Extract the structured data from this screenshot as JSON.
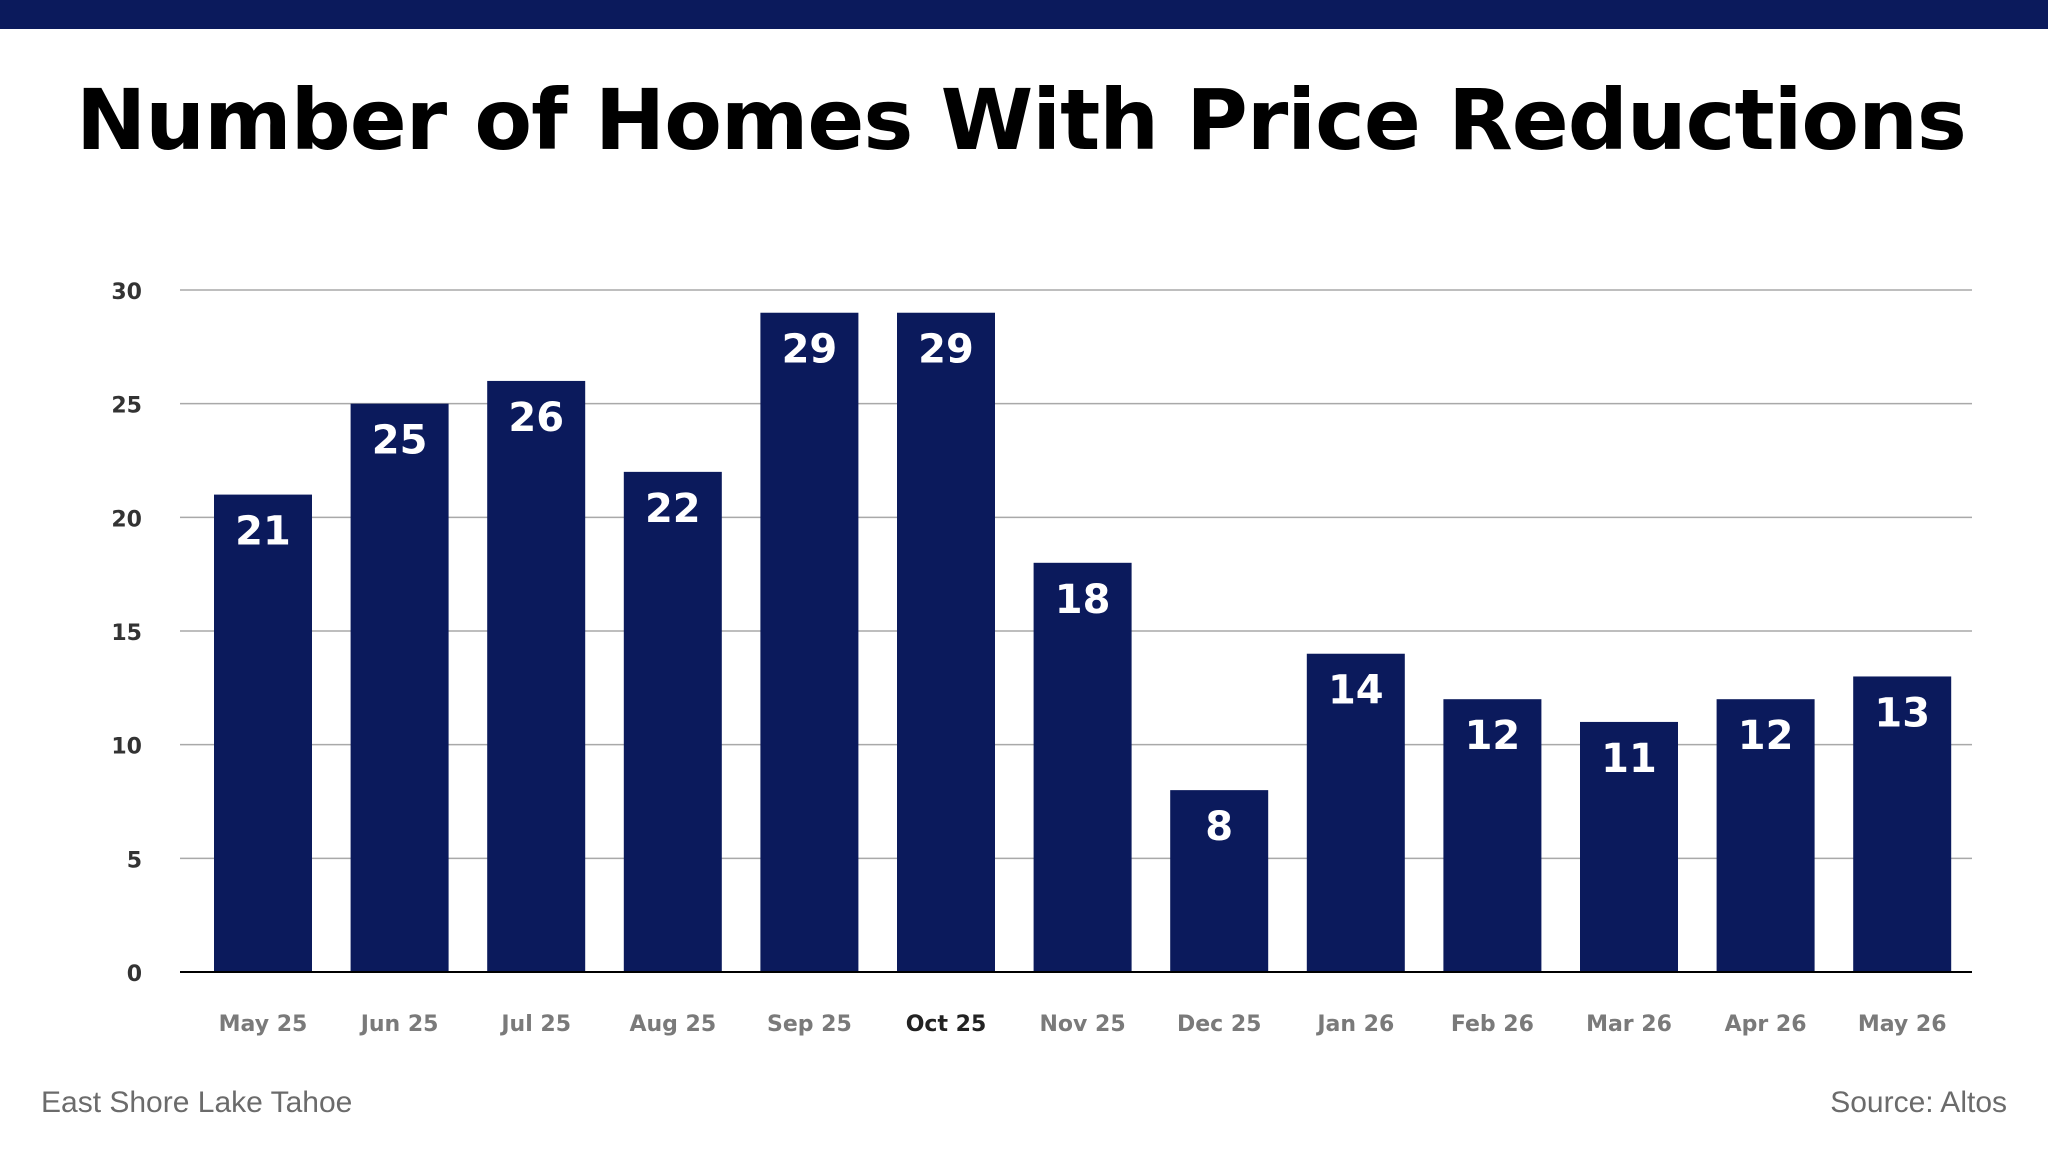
{
  "header": {
    "title": "Number of Homes With Price Reductions"
  },
  "footer": {
    "region": "East Shore Lake Tahoe",
    "source": "Source: Altos"
  },
  "colors": {
    "bar": "#0b1a5c",
    "top_bar": "#0b1a5c",
    "grid": "#a9a9a9",
    "axis": "#000000",
    "bar_label": "#ffffff",
    "tick_label": "#7a7a7a",
    "highlight_tick_label": "#222222"
  },
  "chart_data": {
    "type": "bar",
    "title": "Number of Homes With Price Reductions",
    "xlabel": "",
    "ylabel": "",
    "categories": [
      "May 25",
      "Jun 25",
      "Jul 25",
      "Aug 25",
      "Sep 25",
      "Oct 25",
      "Nov 25",
      "Dec 25",
      "Jan 26",
      "Feb 26",
      "Mar 26",
      "Apr 26",
      "May 26"
    ],
    "values": [
      21,
      25,
      26,
      22,
      29,
      29,
      18,
      8,
      14,
      12,
      11,
      12,
      13
    ],
    "ylim": [
      0,
      30
    ],
    "yticks": [
      0,
      5,
      10,
      15,
      20,
      25,
      30
    ],
    "highlight_category": "Oct 25",
    "grid": true,
    "legend": "none",
    "data_labels": "inside-top"
  }
}
